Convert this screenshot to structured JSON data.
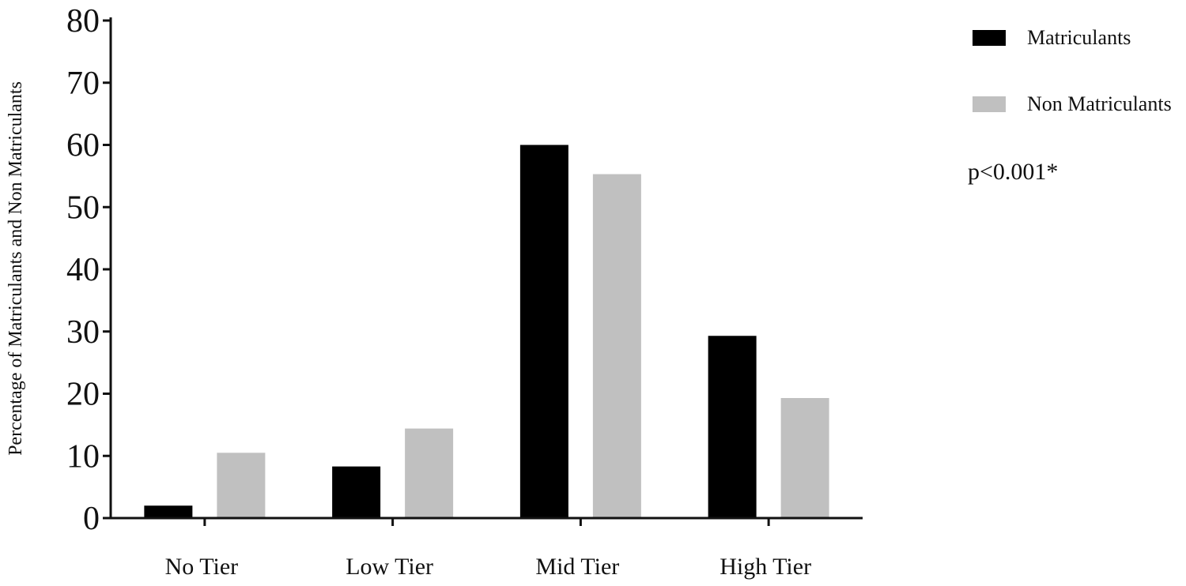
{
  "chart_data": {
    "type": "bar",
    "categories": [
      "No Tier",
      "Low Tier",
      "Mid Tier",
      "High  Tier"
    ],
    "series": [
      {
        "name": "Matriculants",
        "color": "#000000",
        "values": [
          2,
          8.3,
          60,
          29.3
        ]
      },
      {
        "name": "Non Matriculants",
        "color": "#c0c0c0",
        "values": [
          10.5,
          14.4,
          55.3,
          19.3
        ]
      }
    ],
    "title": "",
    "xlabel": "",
    "ylabel": "Percentage of Matriculants and Non Matriculants",
    "ylim": [
      0,
      80
    ],
    "yticks": [
      "0",
      "10",
      "20",
      "30",
      "40",
      "50",
      "60",
      "70",
      "80"
    ],
    "grid": false,
    "legend_position": "top-right",
    "annotation": "p<0.001*"
  }
}
